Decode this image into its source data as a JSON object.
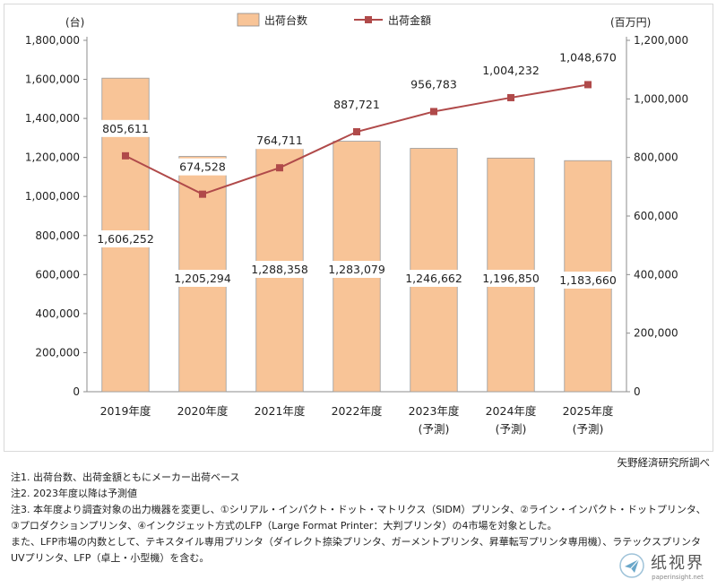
{
  "chart_data": {
    "type": "bar+line",
    "categories": [
      "2019年度",
      "2020年度",
      "2021年度",
      "2022年度",
      "2023年度",
      "2024年度",
      "2025年度"
    ],
    "category_sublabels": [
      "",
      "",
      "",
      "",
      "(予測)",
      "(予測)",
      "(予測)"
    ],
    "series": [
      {
        "name": "出荷台数",
        "type": "bar",
        "axis": "left",
        "color": "#f8c497",
        "values": [
          1606252,
          1205294,
          1288358,
          1283079,
          1246662,
          1196850,
          1183660
        ],
        "labels": [
          "1,606,252",
          "1,205,294",
          "1,288,358",
          "1,283,079",
          "1,246,662",
          "1,196,850",
          "1,183,660"
        ]
      },
      {
        "name": "出荷金額",
        "type": "line",
        "axis": "right",
        "color": "#b04a4a",
        "values": [
          805611,
          674528,
          764711,
          887721,
          956783,
          1004232,
          1048670
        ],
        "labels": [
          "805,611",
          "674,528",
          "764,711",
          "887,721",
          "956,783",
          "1,004,232",
          "1,048,670"
        ]
      }
    ],
    "y_left": {
      "unit": "(台)",
      "lim": [
        0,
        1800000
      ],
      "ticks": [
        "0",
        "200,000",
        "400,000",
        "600,000",
        "800,000",
        "1,000,000",
        "1,200,000",
        "1,400,000",
        "1,600,000",
        "1,800,000"
      ]
    },
    "y_right": {
      "unit": "(百万円)",
      "lim": [
        0,
        1200000
      ],
      "ticks": [
        "0",
        "200,000",
        "400,000",
        "600,000",
        "800,000",
        "1,000,000",
        "1,200,000"
      ]
    },
    "grid": false,
    "legend_position": "top-center"
  },
  "source": "矢野経済研究所調べ",
  "notes": [
    "注1. 出荷台数、出荷金額ともにメーカー出荷ベース",
    "注2. 2023年度以降は予測値",
    "注3. 本年度より調査対象の出力機器を変更し、①シリアル・インパクト・ドット・マトリクス（SIDM）プリンタ、②ライン・インパクト・ドットプリンタ、",
    "③プロダクションプリンタ、④インクジェット方式のLFP（Large Format Printer：大判プリンタ）の4市場を対象とした。",
    "また、LFP市場の内数として、テキスタイル専用プリンタ（ダイレクト捺染プリンタ、ガーメントプリンタ、昇華転写プリンタ専用機）、ラテックスプリンタ、",
    "UVプリンタ、LFP（卓上・小型機）を含む。"
  ],
  "watermark": {
    "name": "纸视界",
    "url": "paperinsight.net",
    "icon": "paper-plane-logo"
  }
}
